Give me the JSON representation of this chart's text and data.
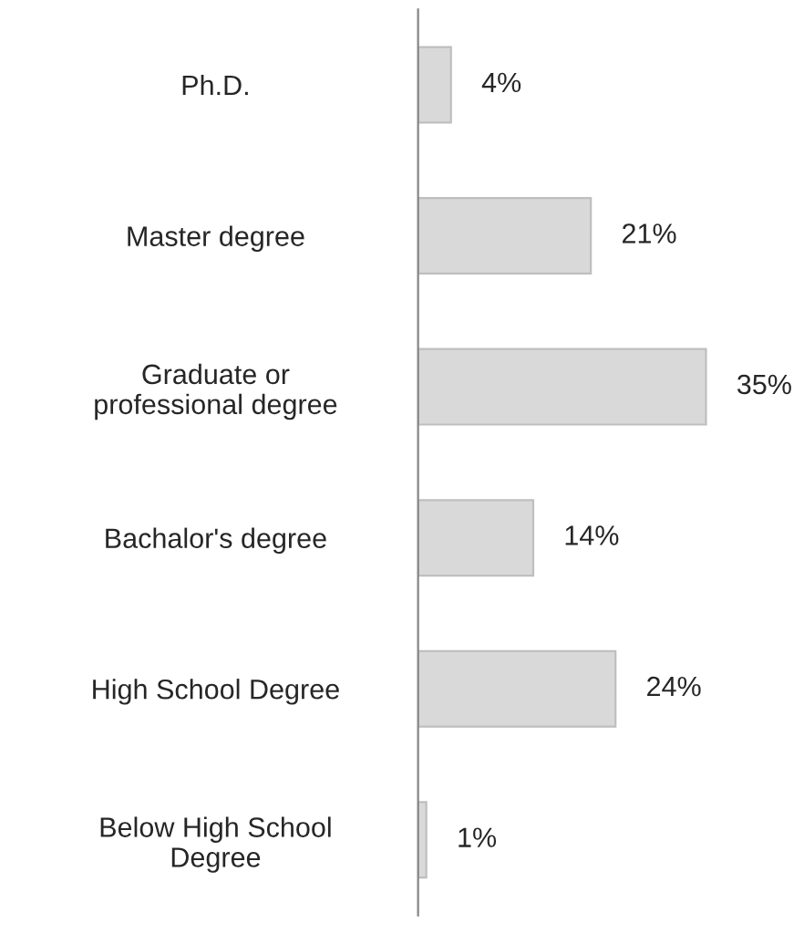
{
  "chart_data": {
    "type": "bar",
    "orientation": "horizontal",
    "categories": [
      "Ph.D.",
      "Master degree",
      "Graduate or\nprofessional degree",
      "Bachalor's degree",
      "High School Degree",
      "Below High School\nDegree"
    ],
    "values": [
      4,
      21,
      35,
      14,
      24,
      1
    ],
    "value_labels": [
      "4%",
      "21%",
      "35%",
      "14%",
      "24%",
      "1%"
    ],
    "color": "#d9d9d9",
    "tick_labels": "y",
    "grid": false,
    "legend": false
  }
}
